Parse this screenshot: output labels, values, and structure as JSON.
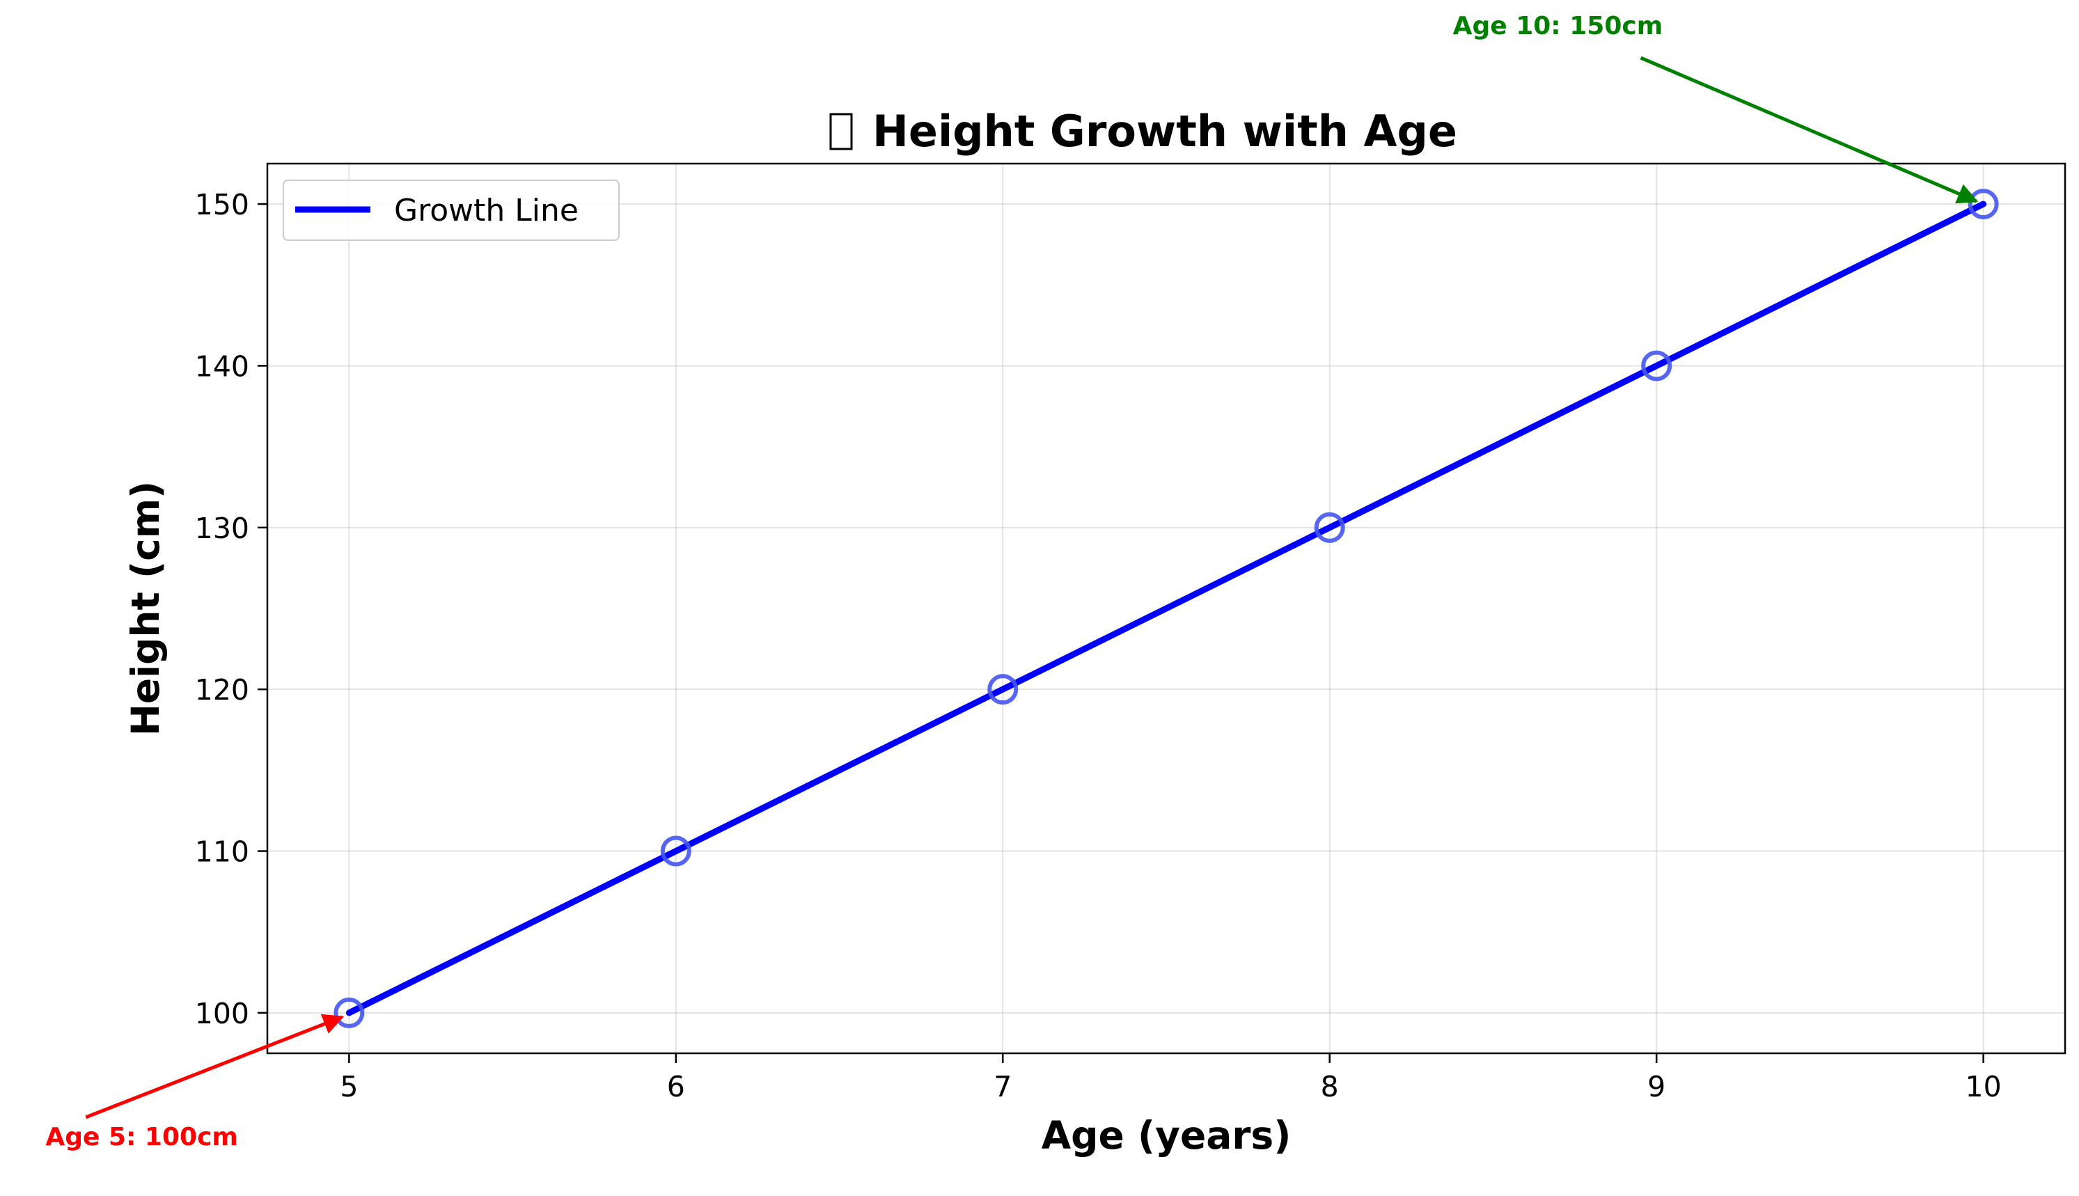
{
  "chart_data": {
    "type": "line",
    "title_icon": "chart-icon",
    "title": "Height Growth with Age",
    "xlabel": "Age (years)",
    "ylabel": "Height (cm)",
    "x": [
      5,
      6,
      7,
      8,
      9,
      10
    ],
    "xlim": [
      4.75,
      10.25
    ],
    "ylim": [
      97.5,
      152.5
    ],
    "x_ticks": [
      "5",
      "6",
      "7",
      "8",
      "9",
      "10"
    ],
    "y_ticks": [
      "100",
      "110",
      "120",
      "130",
      "140",
      "150"
    ],
    "grid": true,
    "legend_position": "top-left",
    "series": [
      {
        "name": "Growth Line",
        "values": [
          100,
          110,
          120,
          130,
          140,
          150
        ],
        "color": "#0000ff",
        "marker": "open-circle",
        "marker_color": "#4455ee"
      }
    ],
    "annotations": [
      {
        "text": "Age 5: 100cm",
        "x": 5,
        "y": 100,
        "color": "#ff0000",
        "placement": "bottom-left"
      },
      {
        "text": "Age 10: 150cm",
        "x": 10,
        "y": 150,
        "color": "#008000",
        "placement": "top-left"
      }
    ]
  }
}
